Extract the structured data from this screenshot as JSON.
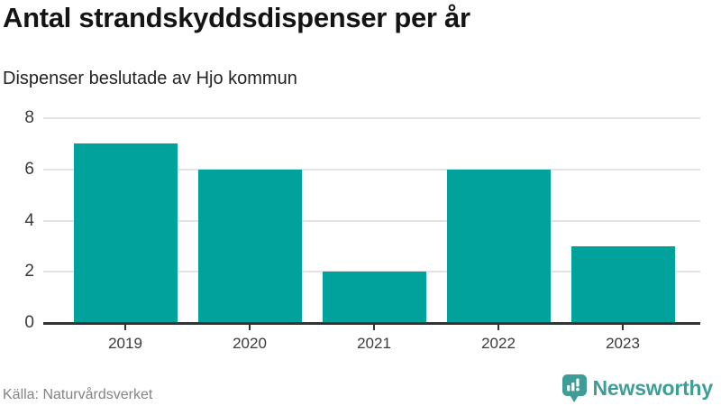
{
  "colors": {
    "bar": "#00a29b",
    "brand": "#3e9e97",
    "grid": "#e3e3e3",
    "axis": "#333333"
  },
  "chart_data": {
    "type": "bar",
    "title": "Antal strandskyddsdispenser per år",
    "subtitle": "Dispenser beslutade av Hjo kommun",
    "categories": [
      "2019",
      "2020",
      "2021",
      "2022",
      "2023"
    ],
    "values": [
      7,
      6,
      2,
      6,
      3
    ],
    "xlabel": "",
    "ylabel": "",
    "ylim": [
      0,
      8
    ],
    "yticks": [
      0,
      2,
      4,
      6,
      8
    ],
    "grid": true,
    "legend": "none",
    "source": "Källa: Naturvårdsverket"
  },
  "footer": {
    "brand_name": "Newsworthy",
    "brand_icon": "newsworthy-speech-bubble-barchart-icon"
  }
}
